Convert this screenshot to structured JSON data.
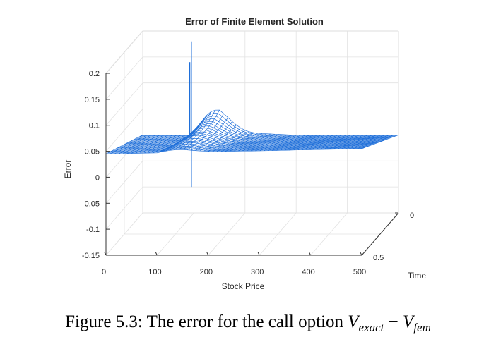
{
  "chart_data": {
    "type": "surface",
    "title": "Error of Finite Element Solution",
    "xlabel": "Stock Price",
    "ylabel": "Time",
    "zlabel": "Error",
    "xlim": [
      0,
      500
    ],
    "ylim": [
      0,
      0.5
    ],
    "zlim": [
      -0.15,
      0.2
    ],
    "x_ticks": [
      "0",
      "100",
      "200",
      "300",
      "400",
      "500"
    ],
    "y_ticks": [
      "0",
      "0.5"
    ],
    "z_ticks": [
      "-0.15",
      "-0.1",
      "-0.05",
      "0",
      "0.05",
      "0.1",
      "0.15",
      "0.2"
    ],
    "strike": 100,
    "surface_color": "#1f6fd9",
    "ridge_profile": {
      "stock_price": [
        100,
        110,
        120,
        135,
        150,
        175,
        200,
        240,
        290,
        350,
        420,
        500
      ],
      "error": [
        0.015,
        0.04,
        0.055,
        0.07,
        0.08,
        0.075,
        0.07,
        0.065,
        0.06,
        0.055,
        0.05,
        0.045
      ]
    },
    "spikes": [
      {
        "stock_price": 95,
        "time": 0.0,
        "min_error": -0.1,
        "max_error": 0.18
      },
      {
        "stock_price": 92,
        "time": 0.0,
        "min_error": 0.0,
        "max_error": 0.14
      }
    ],
    "grid": true,
    "view": "3d"
  },
  "caption": {
    "prefix": "Figure 5.3: The error for the call option ",
    "v1": "V",
    "sub1": "exact",
    "minus": " − ",
    "v2": "V",
    "sub2": "fem"
  }
}
